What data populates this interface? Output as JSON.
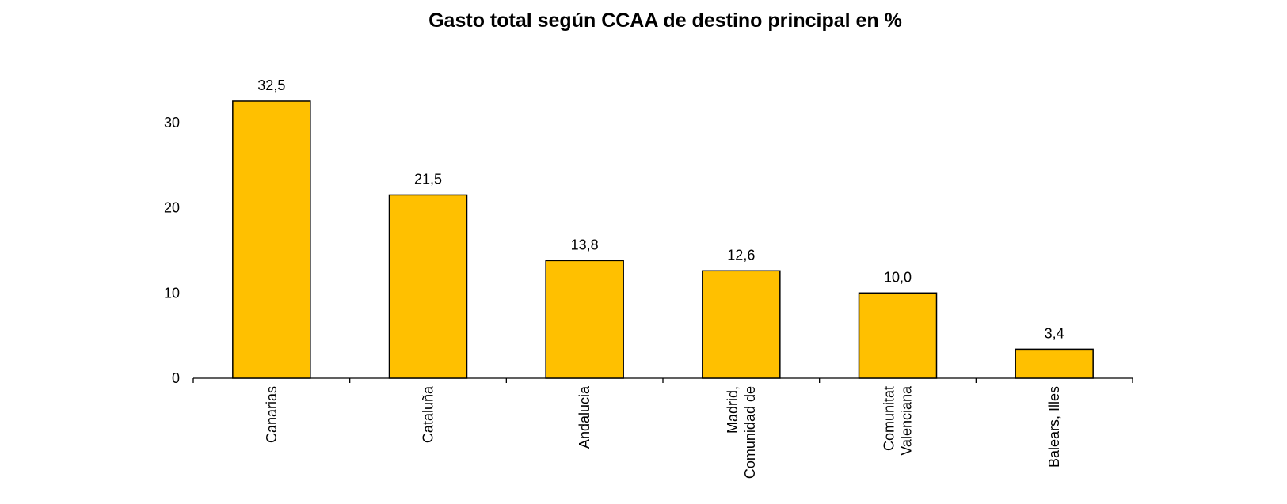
{
  "chart_data": {
    "type": "bar",
    "title": "Gasto total según CCAA de destino principal en %",
    "xlabel": "",
    "ylabel": "",
    "categories": [
      [
        "Canarias"
      ],
      [
        "Cataluña"
      ],
      [
        "Andalucia"
      ],
      [
        "Madrid,",
        "Comunidad de"
      ],
      [
        "Comunitat",
        "Valenciana"
      ],
      [
        "Balears, Illes"
      ]
    ],
    "values": [
      32.5,
      21.5,
      13.8,
      12.6,
      10.0,
      3.4
    ],
    "value_labels": [
      "32,5",
      "21,5",
      "13,8",
      "12,6",
      "10,0",
      "3,4"
    ],
    "ylim": [
      0,
      35
    ],
    "yticks": [
      0,
      10,
      20,
      30
    ],
    "ytick_labels": [
      "0",
      "10",
      "20",
      "30"
    ],
    "grid": false,
    "legend": "none",
    "bar_color": "#FFC000",
    "bar_edge_color": "#000000"
  }
}
